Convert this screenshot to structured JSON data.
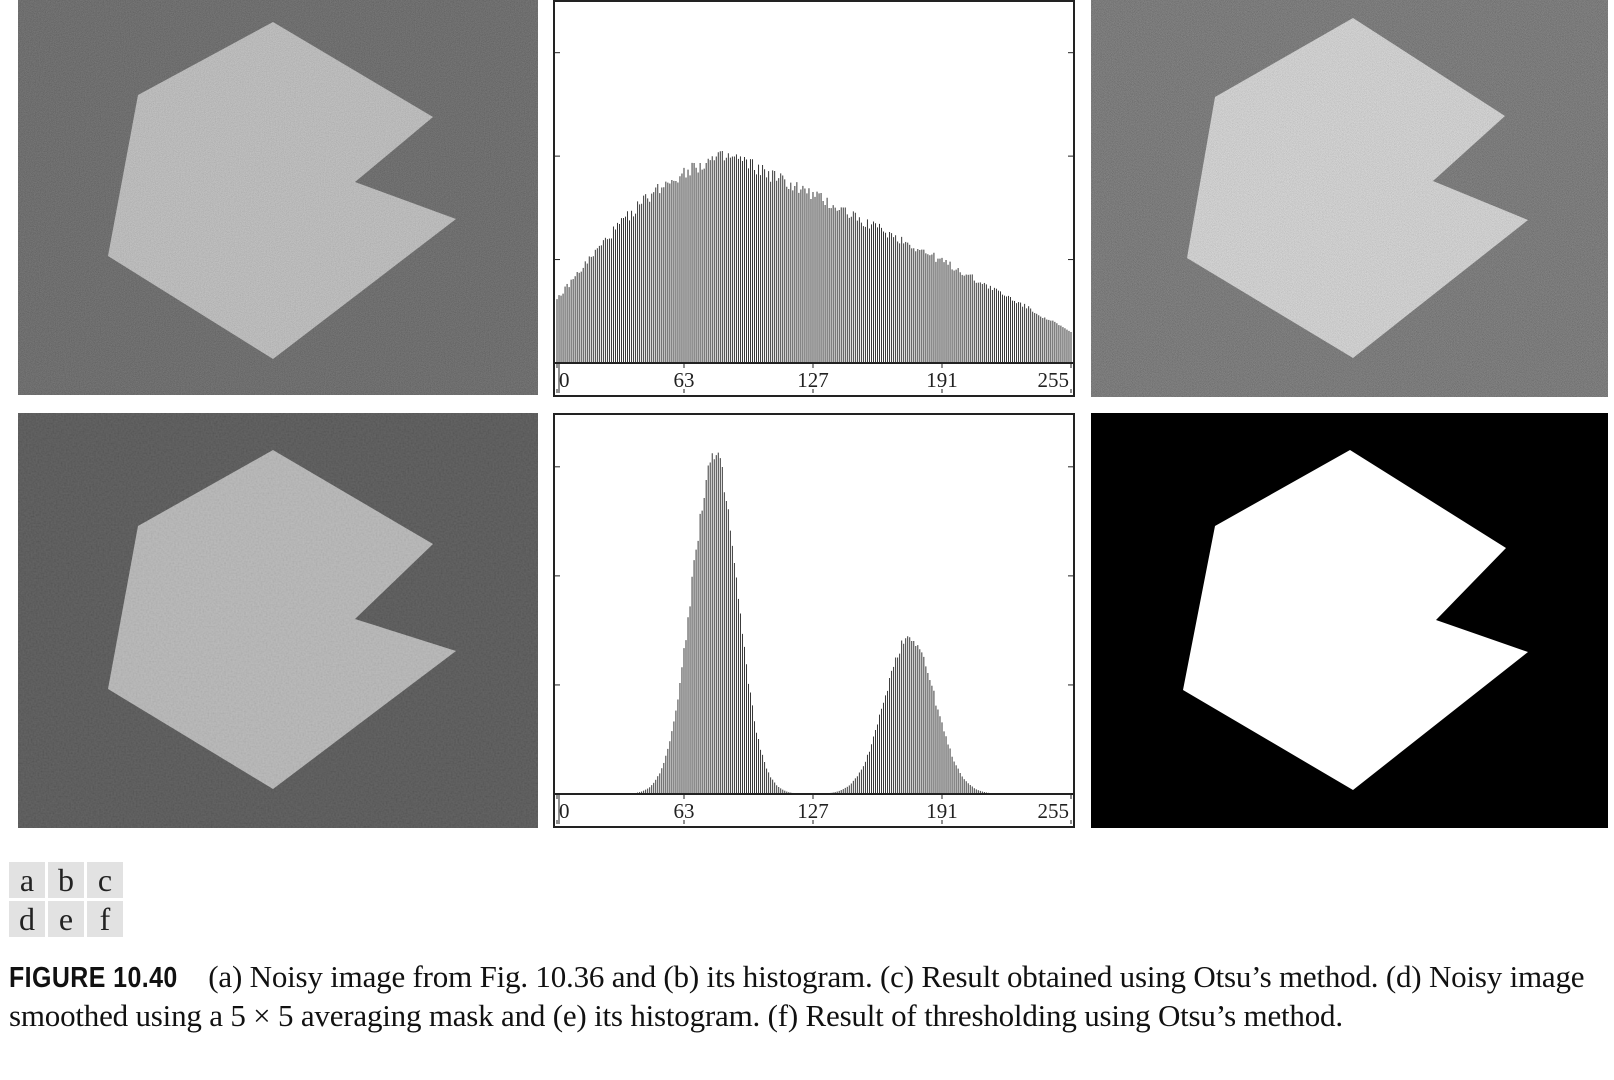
{
  "figure": {
    "panel_labels": [
      [
        "a",
        "b",
        "c"
      ],
      [
        "d",
        "e",
        "f"
      ]
    ],
    "caption_label": "FIGURE 10.40",
    "caption_text": "(a) Noisy image from Fig. 10.36 and (b) its histogram. (c) Result obtained using Otsu’s method. (d) Noisy image smoothed using a 5 × 5 averaging mask and (e) its histogram. (f) Result of thresholding using Otsu’s method."
  },
  "colors": {
    "noisy_background": "#3d3d3d",
    "noisy_shape": "#b8b8b8",
    "smoothed_background": "#4a4a4a",
    "smoothed_shape": "#b4b4b4",
    "otsu_background": "#000000",
    "otsu_shape": "#ffffff",
    "histogram_bars": "#222222"
  },
  "chart_data": [
    {
      "type": "bar",
      "panel": "b",
      "xlabel": "",
      "ylabel": "",
      "xlim": [
        0,
        255
      ],
      "x_tick_labels": [
        "0",
        "63",
        "127",
        "191",
        "255"
      ],
      "x_ticks": [
        0,
        63,
        127,
        191,
        255
      ],
      "shape": "single broad skewed mode",
      "peak_intensity": 88,
      "relative_value_at_0": 0.31,
      "relative_value_at_255": 0.15,
      "peak_relative_height": 1.0
    },
    {
      "type": "bar",
      "panel": "e",
      "xlabel": "",
      "ylabel": "",
      "xlim": [
        0,
        255
      ],
      "x_tick_labels": [
        "0",
        "63",
        "127",
        "191",
        "255"
      ],
      "x_ticks": [
        0,
        63,
        127,
        191,
        255
      ],
      "shape": "bimodal",
      "modes": [
        {
          "intensity": 78,
          "relative_height": 1.0
        },
        {
          "intensity": 175,
          "relative_height": 0.47
        }
      ]
    }
  ]
}
